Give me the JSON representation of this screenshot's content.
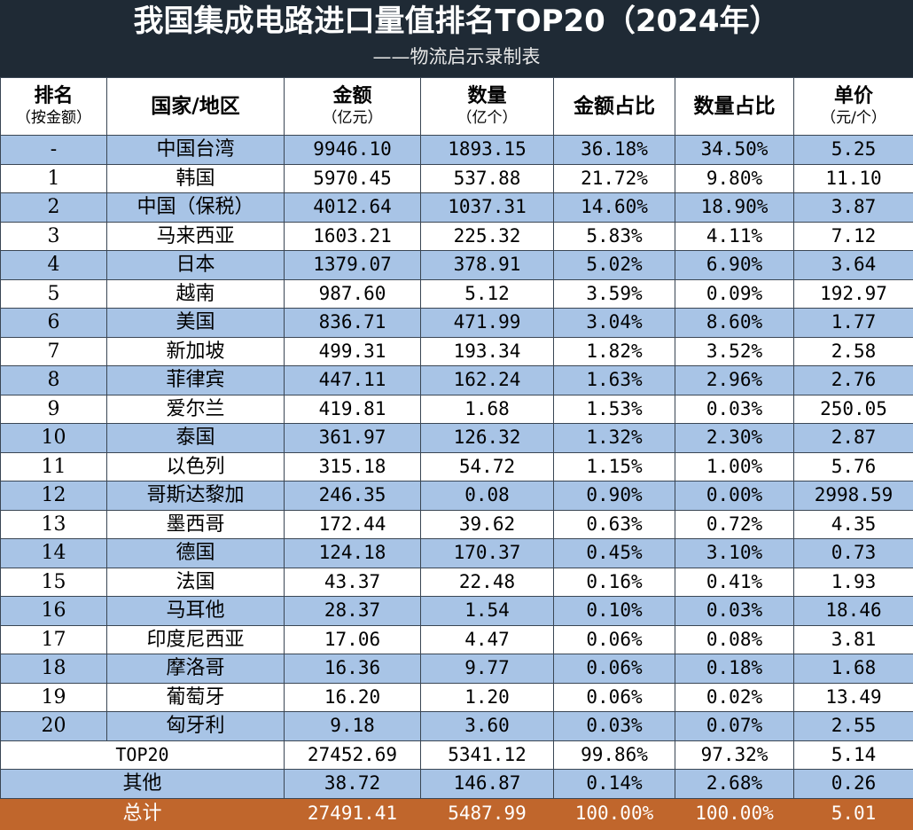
{
  "header": {
    "title": "我国集成电路进口量值排名TOP20（2024年）",
    "subtitle": "——物流启示录制表"
  },
  "columns": [
    {
      "main": "排名",
      "sub": "（按金额）"
    },
    {
      "main": "国家/地区",
      "sub": ""
    },
    {
      "main": "金额",
      "sub": "（亿元）"
    },
    {
      "main": "数量",
      "sub": "（亿个）"
    },
    {
      "main": "金额占比",
      "sub": ""
    },
    {
      "main": "数量占比",
      "sub": ""
    },
    {
      "main": "单价",
      "sub": "（元/个）"
    }
  ],
  "rows": [
    {
      "rank": "-",
      "region": "中国台湾",
      "amount": "9946.10",
      "quantity": "1893.15",
      "amount_share": "36.18%",
      "quantity_share": "34.50%",
      "unit_price": "5.25"
    },
    {
      "rank": "1",
      "region": "韩国",
      "amount": "5970.45",
      "quantity": "537.88",
      "amount_share": "21.72%",
      "quantity_share": "9.80%",
      "unit_price": "11.10"
    },
    {
      "rank": "2",
      "region": "中国（保税）",
      "amount": "4012.64",
      "quantity": "1037.31",
      "amount_share": "14.60%",
      "quantity_share": "18.90%",
      "unit_price": "3.87"
    },
    {
      "rank": "3",
      "region": "马来西亚",
      "amount": "1603.21",
      "quantity": "225.32",
      "amount_share": "5.83%",
      "quantity_share": "4.11%",
      "unit_price": "7.12"
    },
    {
      "rank": "4",
      "region": "日本",
      "amount": "1379.07",
      "quantity": "378.91",
      "amount_share": "5.02%",
      "quantity_share": "6.90%",
      "unit_price": "3.64"
    },
    {
      "rank": "5",
      "region": "越南",
      "amount": "987.60",
      "quantity": "5.12",
      "amount_share": "3.59%",
      "quantity_share": "0.09%",
      "unit_price": "192.97"
    },
    {
      "rank": "6",
      "region": "美国",
      "amount": "836.71",
      "quantity": "471.99",
      "amount_share": "3.04%",
      "quantity_share": "8.60%",
      "unit_price": "1.77"
    },
    {
      "rank": "7",
      "region": "新加坡",
      "amount": "499.31",
      "quantity": "193.34",
      "amount_share": "1.82%",
      "quantity_share": "3.52%",
      "unit_price": "2.58"
    },
    {
      "rank": "8",
      "region": "菲律宾",
      "amount": "447.11",
      "quantity": "162.24",
      "amount_share": "1.63%",
      "quantity_share": "2.96%",
      "unit_price": "2.76"
    },
    {
      "rank": "9",
      "region": "爱尔兰",
      "amount": "419.81",
      "quantity": "1.68",
      "amount_share": "1.53%",
      "quantity_share": "0.03%",
      "unit_price": "250.05"
    },
    {
      "rank": "10",
      "region": "泰国",
      "amount": "361.97",
      "quantity": "126.32",
      "amount_share": "1.32%",
      "quantity_share": "2.30%",
      "unit_price": "2.87"
    },
    {
      "rank": "11",
      "region": "以色列",
      "amount": "315.18",
      "quantity": "54.72",
      "amount_share": "1.15%",
      "quantity_share": "1.00%",
      "unit_price": "5.76"
    },
    {
      "rank": "12",
      "region": "哥斯达黎加",
      "amount": "246.35",
      "quantity": "0.08",
      "amount_share": "0.90%",
      "quantity_share": "0.00%",
      "unit_price": "2998.59"
    },
    {
      "rank": "13",
      "region": "墨西哥",
      "amount": "172.44",
      "quantity": "39.62",
      "amount_share": "0.63%",
      "quantity_share": "0.72%",
      "unit_price": "4.35"
    },
    {
      "rank": "14",
      "region": "德国",
      "amount": "124.18",
      "quantity": "170.37",
      "amount_share": "0.45%",
      "quantity_share": "3.10%",
      "unit_price": "0.73"
    },
    {
      "rank": "15",
      "region": "法国",
      "amount": "43.37",
      "quantity": "22.48",
      "amount_share": "0.16%",
      "quantity_share": "0.41%",
      "unit_price": "1.93"
    },
    {
      "rank": "16",
      "region": "马耳他",
      "amount": "28.37",
      "quantity": "1.54",
      "amount_share": "0.10%",
      "quantity_share": "0.03%",
      "unit_price": "18.46"
    },
    {
      "rank": "17",
      "region": "印度尼西亚",
      "amount": "17.06",
      "quantity": "4.47",
      "amount_share": "0.06%",
      "quantity_share": "0.08%",
      "unit_price": "3.81"
    },
    {
      "rank": "18",
      "region": "摩洛哥",
      "amount": "16.36",
      "quantity": "9.77",
      "amount_share": "0.06%",
      "quantity_share": "0.18%",
      "unit_price": "1.68"
    },
    {
      "rank": "19",
      "region": "葡萄牙",
      "amount": "16.20",
      "quantity": "1.20",
      "amount_share": "0.06%",
      "quantity_share": "0.02%",
      "unit_price": "13.49"
    },
    {
      "rank": "20",
      "region": "匈牙利",
      "amount": "9.18",
      "quantity": "3.60",
      "amount_share": "0.03%",
      "quantity_share": "0.07%",
      "unit_price": "2.55"
    }
  ],
  "summary": [
    {
      "label": "TOP20",
      "amount": "27452.69",
      "quantity": "5341.12",
      "amount_share": "99.86%",
      "quantity_share": "97.32%",
      "unit_price": "5.14"
    },
    {
      "label": "其他",
      "amount": "38.72",
      "quantity": "146.87",
      "amount_share": "0.14%",
      "quantity_share": "2.68%",
      "unit_price": "0.26"
    },
    {
      "label": "总计",
      "amount": "27491.41",
      "quantity": "5487.99",
      "amount_share": "100.00%",
      "quantity_share": "100.00%",
      "unit_price": "5.01"
    }
  ],
  "colors": {
    "header_bg": "#1f2a35",
    "row_blue": "#a8c4e6",
    "row_white": "#ffffff",
    "total_bg": "#c0662c"
  }
}
